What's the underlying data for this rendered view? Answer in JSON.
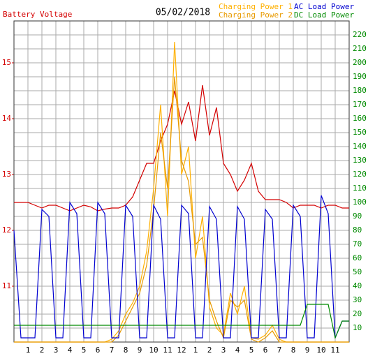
{
  "chart_data": {
    "type": "line",
    "title": "05/02/2018",
    "x": [
      0,
      0.5,
      1,
      1.5,
      2,
      2.5,
      3,
      3.5,
      4,
      4.5,
      5,
      5.5,
      6,
      6.5,
      7,
      7.5,
      8,
      8.5,
      9,
      9.5,
      10,
      10.5,
      11,
      11.5,
      12,
      12.5,
      13,
      13.5,
      14,
      14.5,
      15,
      15.5,
      16,
      16.5,
      17,
      17.5,
      18,
      18.5,
      19,
      19.5,
      20,
      20.5,
      21,
      21.5,
      22,
      22.5,
      23,
      23.5,
      24
    ],
    "series": [
      {
        "name": "Battery Voltage",
        "color": "#d40000",
        "axis": "y",
        "values": [
          12.5,
          12.5,
          12.5,
          12.45,
          12.4,
          12.45,
          12.45,
          12.4,
          12.35,
          12.4,
          12.45,
          12.42,
          12.35,
          12.38,
          12.4,
          12.4,
          12.45,
          12.6,
          12.9,
          13.2,
          13.2,
          13.6,
          13.9,
          14.5,
          13.9,
          14.3,
          13.6,
          14.6,
          13.7,
          14.2,
          13.2,
          13.0,
          12.7,
          12.9,
          13.2,
          12.7,
          12.55,
          12.55,
          12.55,
          12.5,
          12.4,
          12.45,
          12.45,
          12.45,
          12.4,
          12.45,
          12.45,
          12.4,
          12.4
        ]
      },
      {
        "name": "Charging Power 1",
        "color": "#ffb000",
        "axis": "y2",
        "values": [
          0,
          0,
          0,
          0,
          0,
          0,
          0,
          0,
          0,
          0,
          0,
          0,
          0,
          0,
          2,
          8,
          20,
          28,
          40,
          65,
          110,
          170,
          90,
          215,
          120,
          140,
          60,
          90,
          25,
          10,
          5,
          35,
          20,
          40,
          3,
          2,
          5,
          12,
          2,
          0,
          0,
          0,
          0,
          0,
          0,
          0,
          0,
          0,
          0
        ]
      },
      {
        "name": "Charging Power 2",
        "color": "#e89a00",
        "axis": "y2",
        "values": [
          0,
          0,
          0,
          0,
          0,
          0,
          0,
          0,
          0,
          0,
          0,
          0,
          0,
          0,
          0,
          5,
          15,
          25,
          35,
          55,
          95,
          150,
          110,
          190,
          130,
          115,
          70,
          75,
          30,
          15,
          3,
          30,
          25,
          30,
          2,
          0,
          3,
          8,
          0,
          0,
          0,
          0,
          0,
          0,
          0,
          0,
          0,
          0,
          0
        ]
      },
      {
        "name": "AC Load Power",
        "color": "#0000d0",
        "axis": "y2",
        "values": [
          80,
          3,
          3,
          3,
          95,
          90,
          3,
          3,
          100,
          92,
          3,
          3,
          100,
          92,
          3,
          3,
          98,
          90,
          3,
          3,
          98,
          88,
          3,
          3,
          98,
          92,
          3,
          3,
          97,
          88,
          3,
          3,
          97,
          88,
          3,
          3,
          95,
          88,
          3,
          3,
          98,
          90,
          3,
          3,
          105,
          92,
          3,
          15,
          15
        ]
      },
      {
        "name": "DC Load Power",
        "color": "#008a00",
        "axis": "y2",
        "values": [
          12,
          12,
          12,
          12,
          12,
          12,
          12,
          12,
          12,
          12,
          12,
          12,
          12,
          12,
          12,
          12,
          12,
          12,
          12,
          12,
          12,
          12,
          12,
          12,
          12,
          12,
          12,
          12,
          12,
          12,
          12,
          12,
          12,
          12,
          12,
          12,
          12,
          12,
          12,
          12,
          12,
          12,
          27,
          27,
          27,
          27,
          3,
          15,
          15
        ]
      }
    ],
    "xlim": [
      0,
      24
    ],
    "xticks": [
      1,
      2,
      3,
      4,
      5,
      6,
      7,
      8,
      9,
      10,
      11,
      12,
      {
        "value": 13,
        "label": "1"
      },
      {
        "value": 14,
        "label": "2"
      },
      {
        "value": 15,
        "label": "3"
      },
      {
        "value": 16,
        "label": "4"
      },
      {
        "value": 17,
        "label": "5"
      },
      {
        "value": 18,
        "label": "6"
      },
      {
        "value": 19,
        "label": "7"
      },
      {
        "value": 20,
        "label": "8"
      },
      {
        "value": 21,
        "label": "9"
      },
      {
        "value": 22,
        "label": "10"
      },
      {
        "value": 23,
        "label": "11"
      }
    ],
    "ylim": [
      10,
      15.75
    ],
    "yticks": [
      11,
      12,
      13,
      14,
      15
    ],
    "y2lim": [
      0,
      230
    ],
    "y2ticks": [
      10,
      20,
      30,
      40,
      50,
      60,
      70,
      80,
      90,
      100,
      110,
      120,
      130,
      140,
      150,
      160,
      170,
      180,
      190,
      200,
      210,
      220
    ],
    "grid": true
  }
}
